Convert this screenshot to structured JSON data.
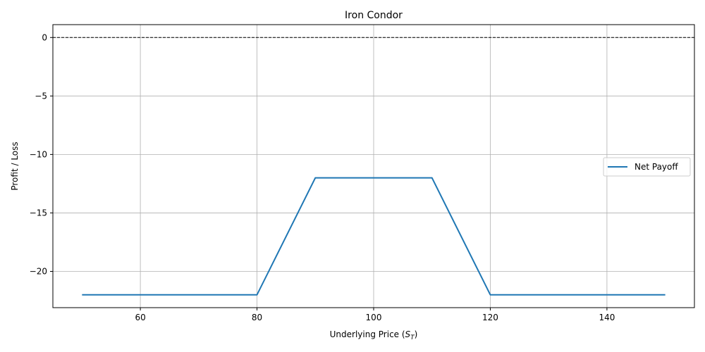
{
  "chart_data": {
    "type": "line",
    "title": "Iron Condor",
    "xlabel": "Underlying Price (",
    "xlabel_var": "S",
    "xlabel_sub": "T",
    "xlabel_close": ")",
    "ylabel": "Profit / Loss",
    "xlim": [
      45,
      155
    ],
    "ylim": [
      -23.1,
      1.1
    ],
    "x_ticks": [
      60,
      80,
      100,
      120,
      140
    ],
    "y_ticks": [
      0,
      -5,
      -10,
      -15,
      -20
    ],
    "x_tick_labels": [
      "60",
      "80",
      "100",
      "120",
      "140"
    ],
    "y_tick_labels": [
      "0",
      "−5",
      "−10",
      "−15",
      "−20"
    ],
    "grid": true,
    "legend_position": "center-right",
    "reference_line": {
      "y": 0,
      "style": "dashed",
      "color": "#000000"
    },
    "series": [
      {
        "name": "Net Payoff",
        "color": "#1f77b4",
        "x": [
          50,
          80,
          90,
          110,
          120,
          150
        ],
        "y": [
          -22,
          -22,
          -12,
          -12,
          -22,
          -22
        ]
      }
    ]
  }
}
